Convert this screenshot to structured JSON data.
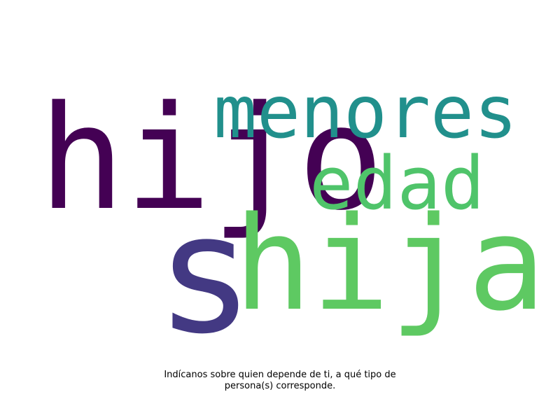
{
  "words": [
    {
      "key": "hijo",
      "text": "hijo",
      "color": "#440154"
    },
    {
      "key": "menores",
      "text": "menores",
      "color": "#21908c"
    },
    {
      "key": "edad",
      "text": "edad",
      "color": "#4fc46a"
    },
    {
      "key": "s",
      "text": "s",
      "color": "#433983"
    },
    {
      "key": "hija",
      "text": "hija",
      "color": "#5ec962"
    }
  ],
  "caption": {
    "line1": "Indícanos sobre quien depende de ti, a qué tipo de",
    "line2": "persona(s) corresponde."
  }
}
